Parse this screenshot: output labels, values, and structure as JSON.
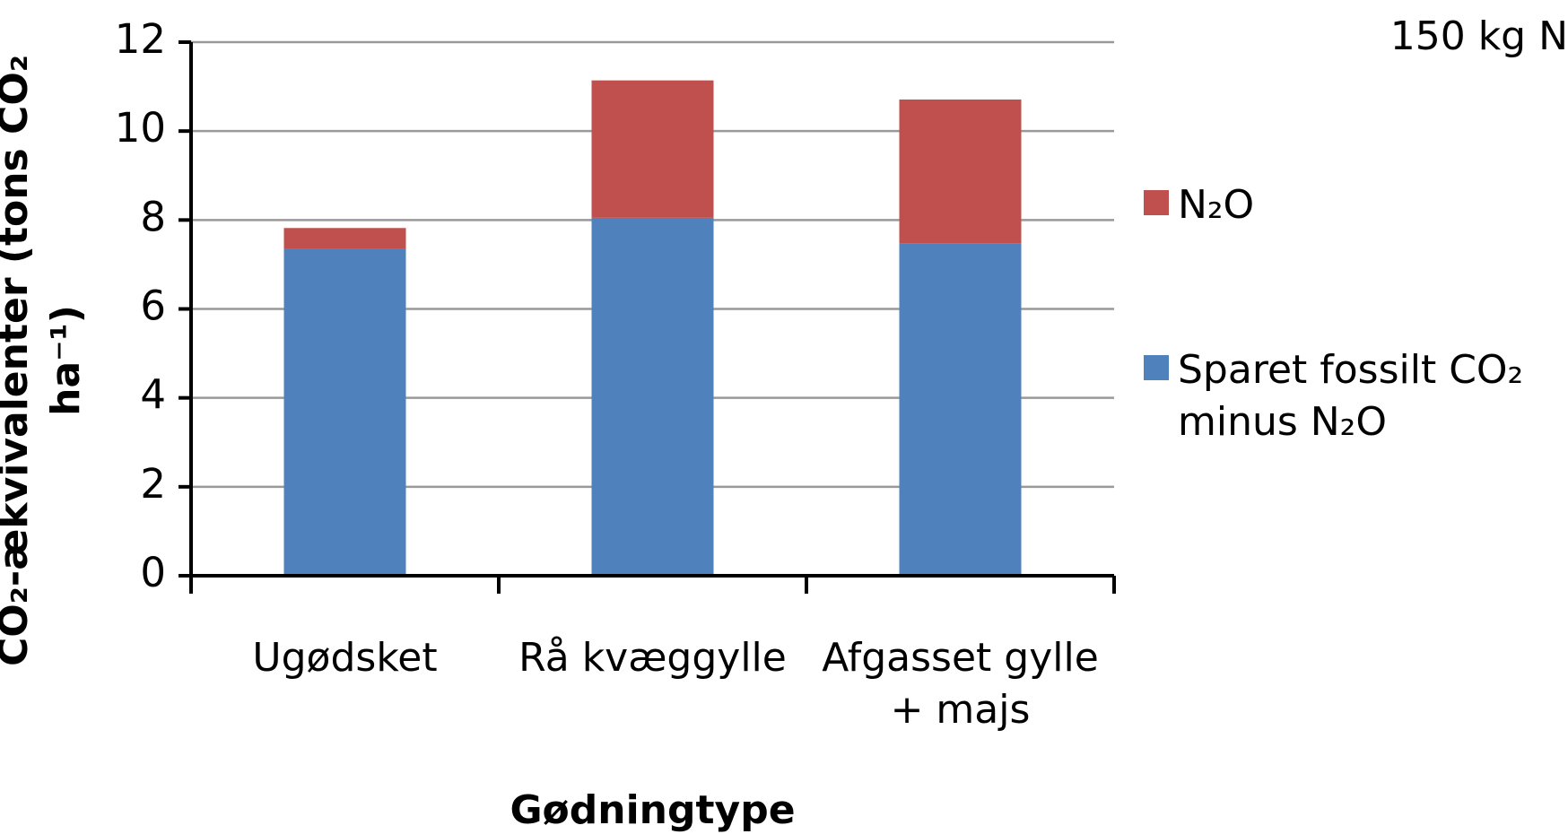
{
  "chart_data": {
    "type": "stacked_bar",
    "annotation": "150 kg N",
    "x_label": "Gødningtype",
    "y_label": "CO₂-ækvivalenter (tons CO₂ ha⁻¹)",
    "categories": [
      "Ugødsket",
      "Rå kvæggylle",
      "Afgasset gylle + majs"
    ],
    "series": [
      {
        "name": "Sparet fossilt CO₂ minus N₂O",
        "color": "#4f81bd",
        "values": [
          7.35,
          8.05,
          7.48
        ]
      },
      {
        "name": "N₂O",
        "color": "#c0504d",
        "values": [
          0.47,
          3.09,
          3.23
        ]
      }
    ],
    "ylim": [
      0,
      12
    ],
    "yticks": [
      0,
      2,
      4,
      6,
      8,
      10,
      12
    ],
    "grid": true,
    "legend": "right"
  }
}
